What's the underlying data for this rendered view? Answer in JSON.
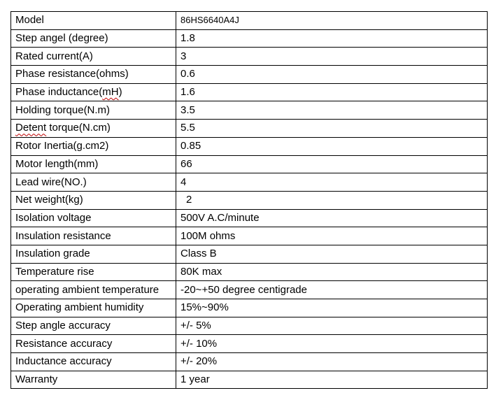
{
  "specs": [
    {
      "label": "Model",
      "value": "86HS6640A4J"
    },
    {
      "label": "Step angel (degree)",
      "value": "1.8"
    },
    {
      "label": "Rated current(A)",
      "value": "3"
    },
    {
      "label": "Phase resistance(ohms)",
      "value": "0.6"
    },
    {
      "label_parts": [
        "Phase inductance(",
        "mH",
        ")"
      ],
      "value": "1.6"
    },
    {
      "label": "Holding torque(N.m)",
      "value": "3.5"
    },
    {
      "label_parts": [
        "Detent",
        " torque(N.cm)"
      ],
      "value": "5.5"
    },
    {
      "label": "Rotor Inertia(g.cm2)",
      "value": "0.85"
    },
    {
      "label": "Motor length(mm)",
      "value": "66"
    },
    {
      "label": "Lead wire(NO.)",
      "value": "4"
    },
    {
      "label": "Net weight(kg)",
      "value": "2"
    },
    {
      "label": "Isolation voltage",
      "value": "500V A.C/minute"
    },
    {
      "label": "Insulation resistance",
      "value": "100M ohms"
    },
    {
      "label": "Insulation grade",
      "value": "Class B"
    },
    {
      "label": "Temperature rise",
      "value": "80K max"
    },
    {
      "label": "operating ambient temperature",
      "value": "-20~+50 degree centigrade"
    },
    {
      "label": "Operating ambient humidity",
      "value": "15%~90%"
    },
    {
      "label": "Step angle accuracy",
      "value": "+/- 5%"
    },
    {
      "label": "Resistance accuracy",
      "value": "+/- 10%"
    },
    {
      "label": "Inductance accuracy",
      "value": "+/- 20%"
    },
    {
      "label": "Warranty",
      "value": "1 year"
    }
  ]
}
